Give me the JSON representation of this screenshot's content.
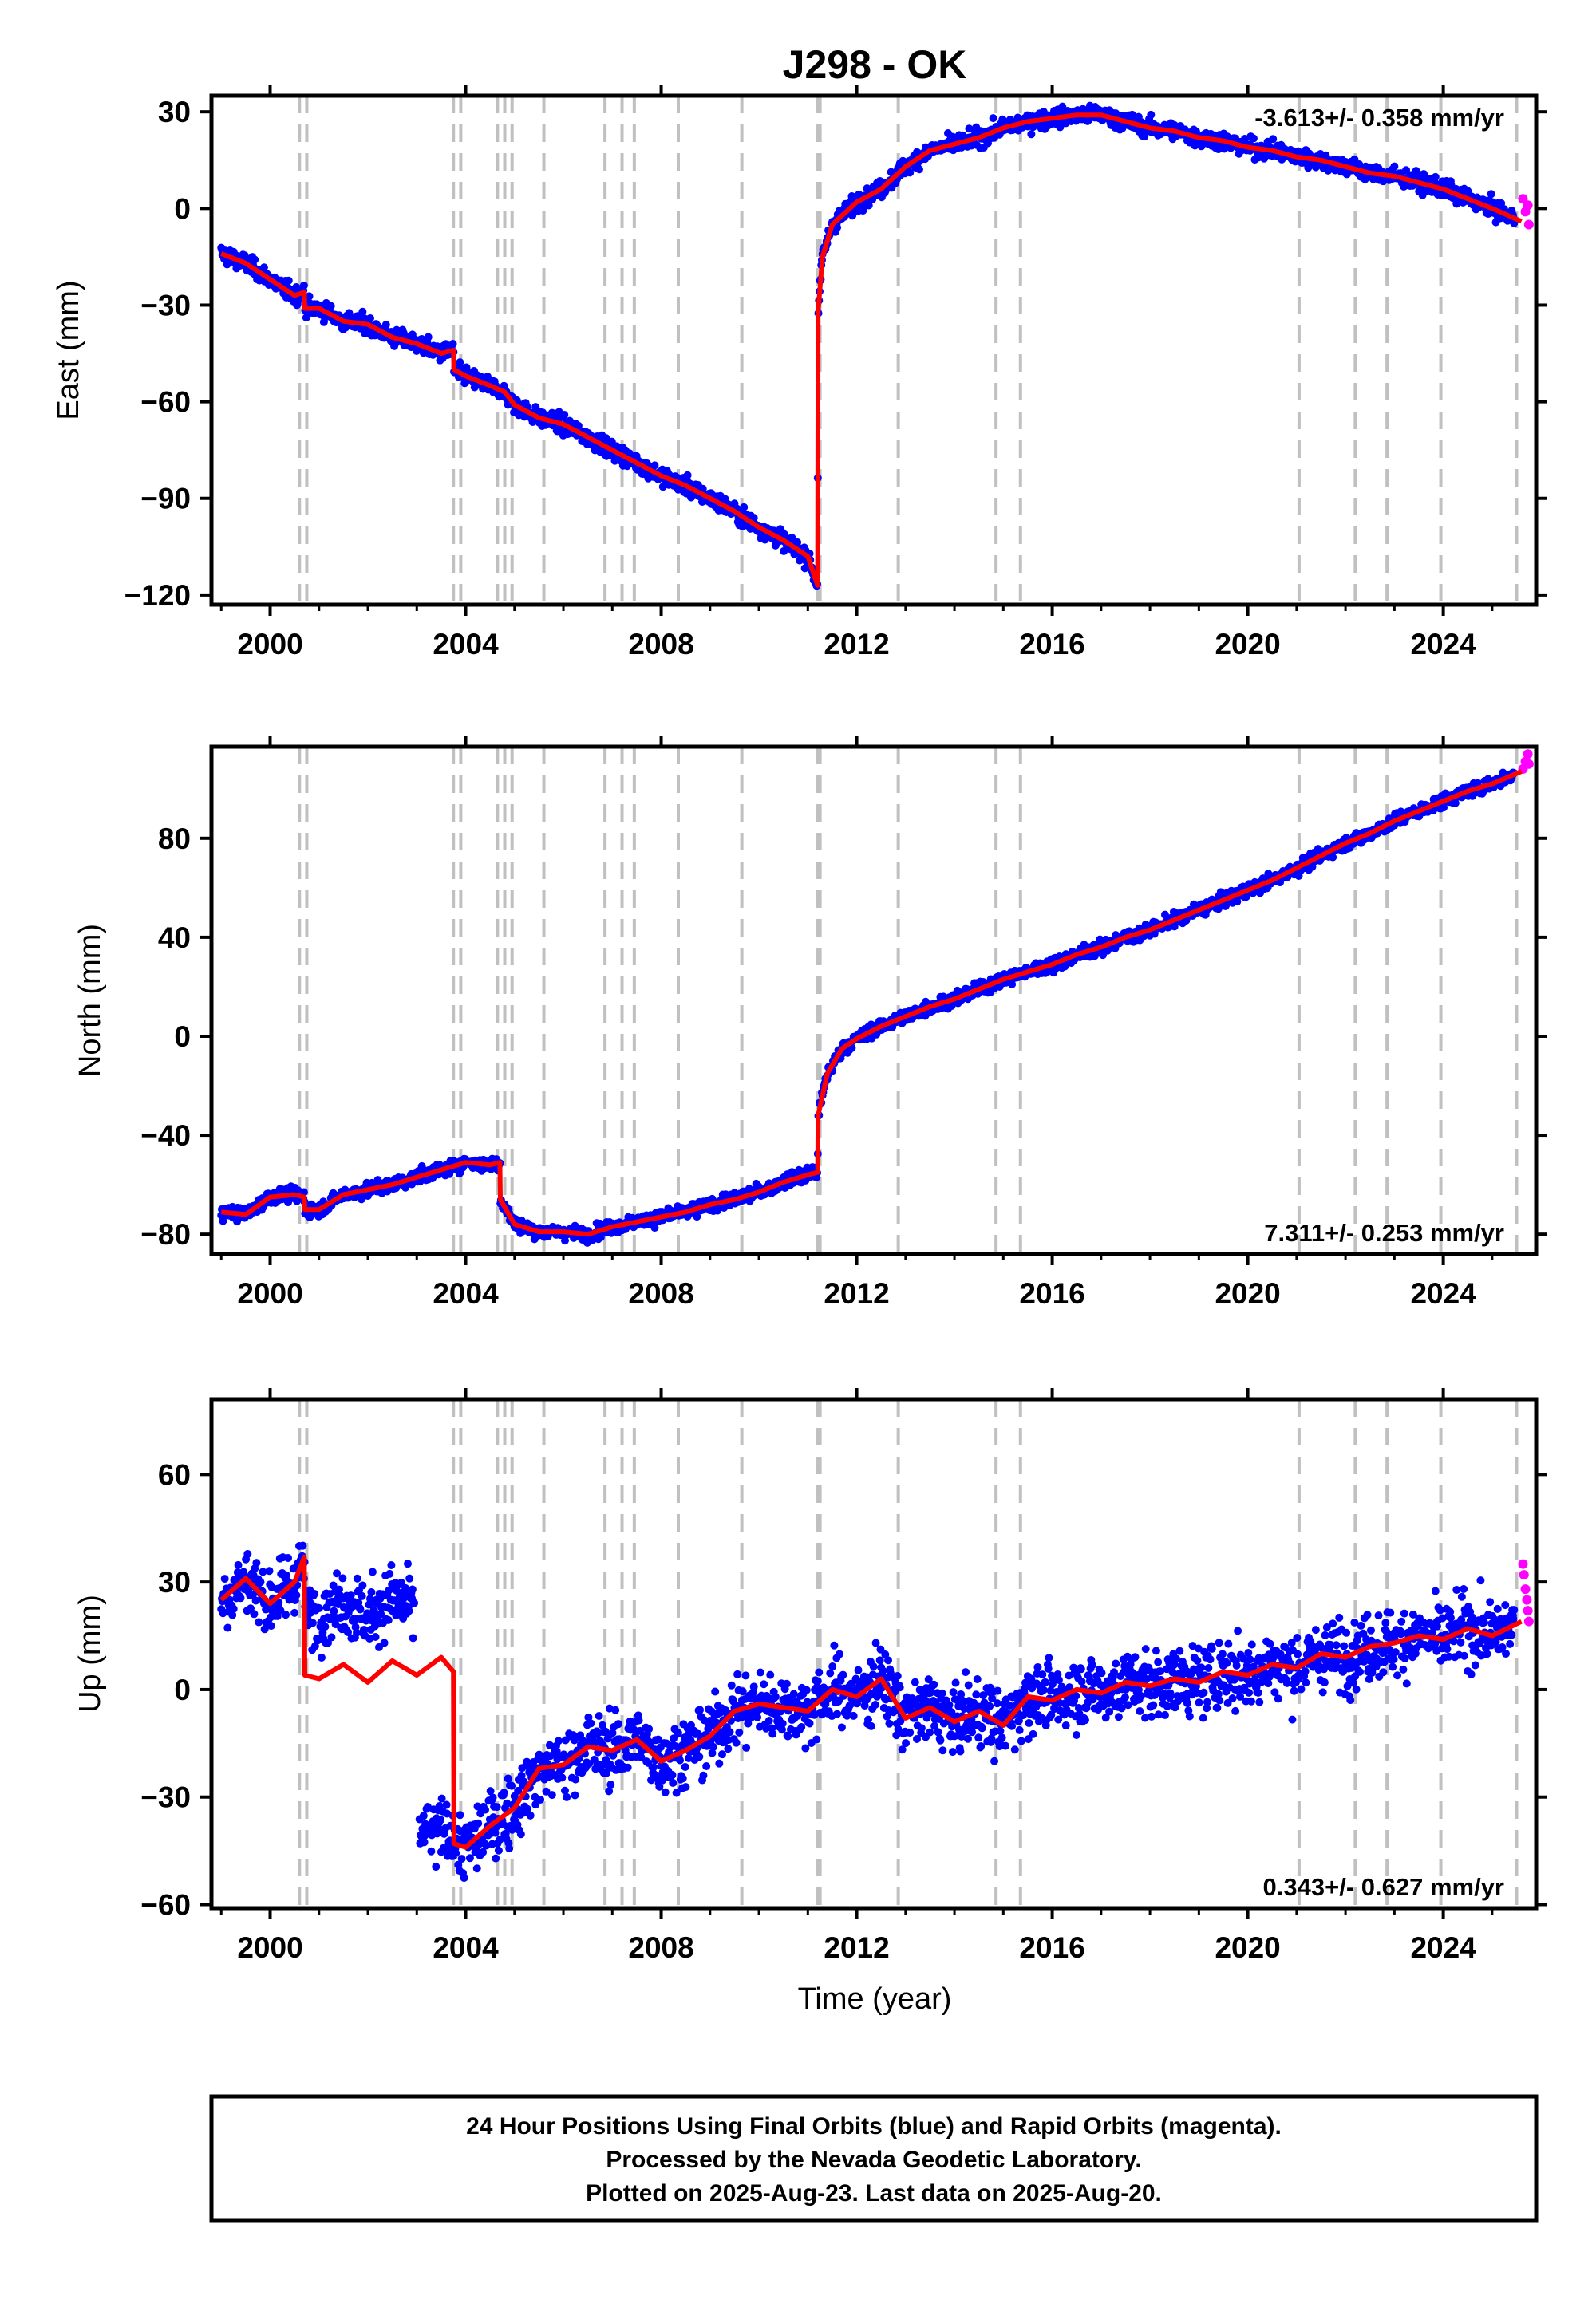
{
  "figure": {
    "title": "J298 - OK",
    "x_axis_label": "Time (year)",
    "footer": [
      "24 Hour Positions Using Final Orbits (blue) and Rapid Orbits (magenta).",
      "Processed by the Nevada Geodetic Laboratory.",
      "Plotted on 2025-Aug-23. Last data on 2025-Aug-20."
    ],
    "colors": {
      "final_orbits": "#0000ff",
      "rapid_orbits": "#ff00ff",
      "model": "#ff0000",
      "event_lines": "#c0c0c0"
    }
  },
  "chart_data": [
    {
      "type": "scatter",
      "panel": "east",
      "ylabel": "East (mm)",
      "rate_text": "-3.613+/- 0.358 mm/yr",
      "rate_position": "top-right",
      "xlim": [
        1998.8,
        2025.9
      ],
      "ylim": [
        -123,
        35
      ],
      "x_ticks": [
        2000,
        2004,
        2008,
        2012,
        2016,
        2020,
        2024
      ],
      "y_ticks": [
        30,
        0,
        -30,
        -60,
        -90,
        -120
      ],
      "y_tick_labels": [
        "30",
        "0",
        "−30",
        "−60",
        "−90",
        "−120"
      ],
      "event_lines": [
        2000.6,
        2000.75,
        2003.75,
        2003.9,
        2004.65,
        2004.8,
        2004.95,
        2005.6,
        2006.85,
        2007.2,
        2007.45,
        2008.35,
        2009.65,
        2011.2,
        2011.25,
        2012.85,
        2014.85,
        2015.35,
        2021.05,
        2022.2,
        2022.85,
        2023.95,
        2025.5
      ],
      "model_series": {
        "name": "model",
        "x": [
          1999.0,
          1999.5,
          2000.0,
          2000.5,
          2000.7,
          2000.71,
          2001.0,
          2001.5,
          2002.0,
          2002.5,
          2003.0,
          2003.5,
          2003.75,
          2003.76,
          2004.0,
          2004.5,
          2004.8,
          2005.0,
          2005.5,
          2006.0,
          2006.5,
          2007.0,
          2007.5,
          2008.0,
          2008.5,
          2009.0,
          2009.5,
          2010.0,
          2010.5,
          2011.0,
          2011.2,
          2011.21,
          2011.3,
          2011.5,
          2012.0,
          2012.5,
          2013.0,
          2013.5,
          2014.0,
          2014.5,
          2015.0,
          2015.5,
          2016.0,
          2016.5,
          2017.0,
          2017.5,
          2018.0,
          2018.5,
          2019.0,
          2019.5,
          2020.0,
          2020.5,
          2021.0,
          2021.5,
          2022.0,
          2022.5,
          2023.0,
          2023.5,
          2024.0,
          2024.5,
          2025.0,
          2025.6
        ],
        "y": [
          -14,
          -17,
          -22,
          -27,
          -26,
          -31,
          -31,
          -35,
          -36,
          -40,
          -42,
          -45,
          -44,
          -50,
          -52,
          -55,
          -57,
          -61,
          -65,
          -67,
          -71,
          -75,
          -79,
          -83,
          -86,
          -90,
          -94,
          -99,
          -103,
          -108,
          -117,
          -32,
          -15,
          -5,
          2,
          6,
          13,
          18,
          20,
          22,
          25,
          27,
          28,
          29,
          29,
          27,
          25,
          24,
          22,
          21,
          19,
          18,
          16,
          15,
          13,
          11,
          10,
          8,
          6,
          3,
          0,
          -4
        ]
      },
      "rapid_series": {
        "name": "rapid orbits",
        "x": [
          2025.5,
          2025.55,
          2025.6,
          2025.62
        ],
        "y": [
          3,
          -1,
          1,
          -5
        ]
      }
    },
    {
      "type": "scatter",
      "panel": "north",
      "ylabel": "North (mm)",
      "rate_text": "7.311+/- 0.253 mm/yr",
      "rate_position": "bottom-right",
      "xlim": [
        1998.8,
        2025.9
      ],
      "ylim": [
        -88,
        117
      ],
      "x_ticks": [
        2000,
        2004,
        2008,
        2012,
        2016,
        2020,
        2024
      ],
      "y_ticks": [
        80,
        40,
        0,
        -40,
        -80
      ],
      "y_tick_labels": [
        "80",
        "40",
        "0",
        "−40",
        "−80"
      ],
      "event_lines": [
        2000.6,
        2000.75,
        2003.75,
        2003.9,
        2004.65,
        2004.8,
        2004.95,
        2005.6,
        2006.85,
        2007.2,
        2007.45,
        2008.35,
        2009.65,
        2011.2,
        2011.25,
        2012.85,
        2014.85,
        2015.35,
        2021.05,
        2022.2,
        2022.85,
        2023.95,
        2025.5
      ],
      "model_series": {
        "name": "model",
        "x": [
          1999.0,
          1999.5,
          2000.0,
          2000.5,
          2000.7,
          2000.71,
          2001.0,
          2001.5,
          2002.0,
          2002.5,
          2003.0,
          2003.5,
          2004.0,
          2004.5,
          2004.7,
          2004.71,
          2005.0,
          2005.5,
          2006.0,
          2006.5,
          2007.0,
          2007.5,
          2008.0,
          2008.5,
          2009.0,
          2009.5,
          2010.0,
          2010.5,
          2011.0,
          2011.2,
          2011.21,
          2011.4,
          2011.7,
          2012.0,
          2012.5,
          2013.0,
          2013.5,
          2014.0,
          2014.5,
          2015.0,
          2015.5,
          2016.0,
          2016.5,
          2017.0,
          2017.5,
          2018.0,
          2018.5,
          2019.0,
          2019.5,
          2020.0,
          2020.5,
          2021.0,
          2021.5,
          2022.0,
          2022.5,
          2023.0,
          2023.5,
          2024.0,
          2024.5,
          2025.0,
          2025.6
        ],
        "y": [
          -71,
          -72,
          -65,
          -64,
          -65,
          -70,
          -70,
          -64,
          -62,
          -60,
          -57,
          -54,
          -51,
          -52,
          -51,
          -66,
          -76,
          -79,
          -79,
          -80,
          -77,
          -75,
          -73,
          -71,
          -68,
          -66,
          -63,
          -59,
          -56,
          -55,
          -32,
          -15,
          -5,
          -1,
          4,
          8,
          12,
          15,
          19,
          23,
          26,
          29,
          33,
          36,
          40,
          43,
          47,
          51,
          55,
          59,
          63,
          68,
          73,
          78,
          82,
          87,
          91,
          95,
          99,
          102,
          107
        ]
      },
      "rapid_series": {
        "name": "rapid orbits",
        "x": [
          2025.5,
          2025.55,
          2025.6,
          2025.62
        ],
        "y": [
          108,
          111,
          114,
          110
        ]
      }
    },
    {
      "type": "scatter",
      "panel": "up",
      "ylabel": "Up (mm)",
      "rate_text": "0.343+/- 0.627 mm/yr",
      "rate_position": "bottom-right",
      "xlim": [
        1998.8,
        2025.9
      ],
      "ylim": [
        -61,
        81
      ],
      "x_ticks": [
        2000,
        2004,
        2008,
        2012,
        2016,
        2020,
        2024
      ],
      "y_ticks": [
        60,
        30,
        0,
        -30,
        -60
      ],
      "y_tick_labels": [
        "60",
        "30",
        "0",
        "−30",
        "−60"
      ],
      "event_lines": [
        2000.6,
        2000.75,
        2003.75,
        2003.9,
        2004.65,
        2004.8,
        2004.95,
        2005.6,
        2006.85,
        2007.2,
        2007.45,
        2008.35,
        2009.65,
        2011.2,
        2011.25,
        2012.85,
        2014.85,
        2015.35,
        2021.05,
        2022.2,
        2022.85,
        2023.95,
        2025.5
      ],
      "model_series": {
        "name": "model",
        "x": [
          1999.0,
          1999.5,
          2000.0,
          2000.5,
          2000.7,
          2000.71,
          2001.0,
          2001.5,
          2002.0,
          2002.5,
          2003.0,
          2003.5,
          2003.75,
          2003.76,
          2004.0,
          2004.5,
          2005.0,
          2005.5,
          2006.0,
          2006.5,
          2007.0,
          2007.5,
          2008.0,
          2008.5,
          2009.0,
          2009.5,
          2010.0,
          2010.5,
          2011.0,
          2011.5,
          2012.0,
          2012.5,
          2013.0,
          2013.5,
          2014.0,
          2014.5,
          2015.0,
          2015.5,
          2016.0,
          2016.5,
          2017.0,
          2017.5,
          2018.0,
          2018.5,
          2019.0,
          2019.5,
          2020.0,
          2020.5,
          2021.0,
          2021.5,
          2022.0,
          2022.5,
          2023.0,
          2023.5,
          2024.0,
          2024.5,
          2025.0,
          2025.6
        ],
        "y": [
          25,
          31,
          24,
          30,
          37,
          4,
          3,
          7,
          2,
          8,
          4,
          9,
          5,
          -43,
          -44,
          -38,
          -33,
          -22,
          -21,
          -16,
          -17,
          -14,
          -20,
          -17,
          -13,
          -6,
          -4,
          -5,
          -6,
          0,
          -2,
          3,
          -8,
          -5,
          -9,
          -6,
          -10,
          -2,
          -3,
          0,
          -1,
          2,
          1,
          3,
          2,
          5,
          4,
          7,
          6,
          10,
          9,
          12,
          13,
          15,
          14,
          17,
          15,
          19
        ]
      },
      "rapid_series": {
        "name": "rapid orbits",
        "x": [
          2025.5,
          2025.52,
          2025.55,
          2025.58,
          2025.6,
          2025.62
        ],
        "y": [
          35,
          32,
          28,
          25,
          22,
          19
        ]
      }
    }
  ]
}
